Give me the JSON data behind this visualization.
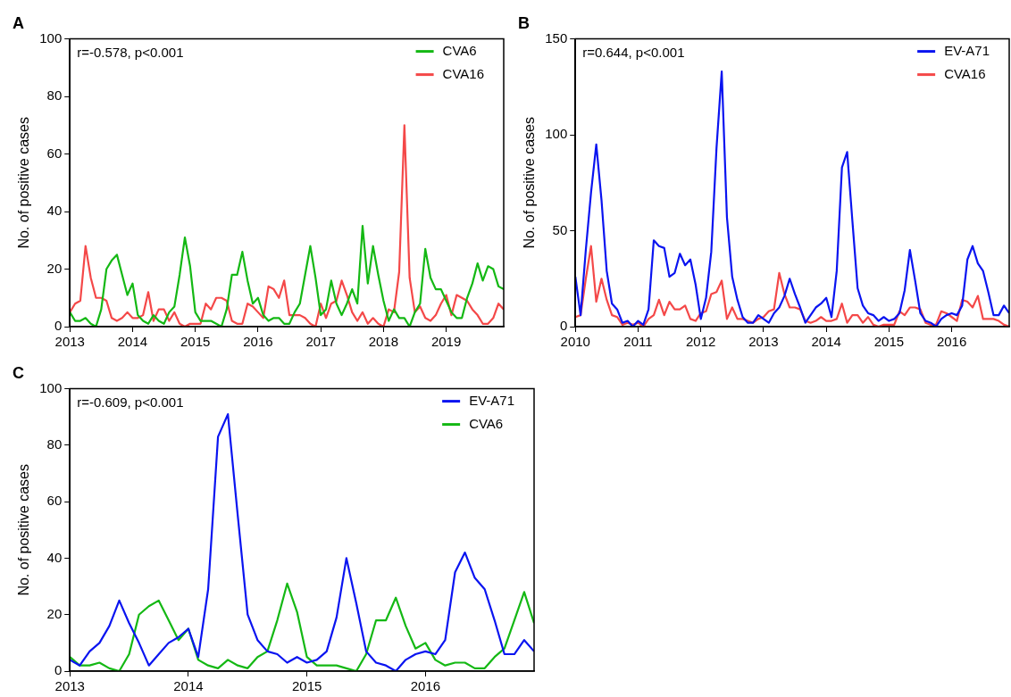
{
  "chart_data": [
    {
      "type": "line",
      "title": "A",
      "ylabel": "No. of positive cases",
      "annotations": [
        "r=-0.578, p<0.001"
      ],
      "legend": "top right",
      "x": [
        "2013-01",
        "2013-02",
        "2013-03",
        "2013-04",
        "2013-05",
        "2013-06",
        "2013-07",
        "2013-08",
        "2013-09",
        "2013-10",
        "2013-11",
        "2013-12",
        "2014-01",
        "2014-02",
        "2014-03",
        "2014-04",
        "2014-05",
        "2014-06",
        "2014-07",
        "2014-08",
        "2014-09",
        "2014-10",
        "2014-11",
        "2014-12",
        "2015-01",
        "2015-02",
        "2015-03",
        "2015-04",
        "2015-05",
        "2015-06",
        "2015-07",
        "2015-08",
        "2015-09",
        "2015-10",
        "2015-11",
        "2015-12",
        "2016-01",
        "2016-02",
        "2016-03",
        "2016-04",
        "2016-05",
        "2016-06",
        "2016-07",
        "2016-08",
        "2016-09",
        "2016-10",
        "2016-11",
        "2016-12",
        "2017-01",
        "2017-02",
        "2017-03",
        "2017-04",
        "2017-05",
        "2017-06",
        "2017-07",
        "2017-08",
        "2017-09",
        "2017-10",
        "2017-11",
        "2017-12",
        "2018-01",
        "2018-02",
        "2018-03",
        "2018-04",
        "2018-05",
        "2018-06",
        "2018-07",
        "2018-08",
        "2018-09",
        "2018-10",
        "2018-11",
        "2018-12",
        "2019-01",
        "2019-02",
        "2019-03",
        "2019-04",
        "2019-05",
        "2019-06",
        "2019-07",
        "2019-08",
        "2019-09",
        "2019-10",
        "2019-11",
        "2019-12"
      ],
      "xlim": [
        "2013-01",
        "2019-12"
      ],
      "xticks": [
        "2013",
        "2014",
        "2015",
        "2016",
        "2017",
        "2018",
        "2019"
      ],
      "ylim": [
        0,
        100
      ],
      "yticks": [
        0,
        20,
        40,
        60,
        80,
        100
      ],
      "series": [
        {
          "name": "CVA6",
          "color": "#14b814",
          "values": [
            5,
            2,
            2,
            3,
            1,
            0,
            6,
            20,
            23,
            25,
            18,
            11,
            15,
            4,
            2,
            1,
            4,
            2,
            1,
            5,
            7,
            18,
            31,
            21,
            5,
            2,
            2,
            2,
            1,
            0,
            6,
            18,
            18,
            26,
            16,
            8,
            10,
            4,
            2,
            3,
            3,
            1,
            1,
            5,
            8,
            18,
            28,
            17,
            4,
            6,
            16,
            8,
            4,
            8,
            13,
            8,
            35,
            15,
            28,
            18,
            9,
            2,
            6,
            3,
            3,
            0,
            5,
            8,
            27,
            17,
            13,
            13,
            9,
            5,
            3,
            3,
            10,
            15,
            22,
            16,
            21,
            20,
            14,
            13
          ]
        },
        {
          "name": "CVA16",
          "color": "#f44848",
          "values": [
            5,
            8,
            9,
            28,
            17,
            10,
            10,
            9,
            3,
            2,
            3,
            5,
            3,
            3,
            4,
            12,
            2,
            6,
            6,
            2,
            5,
            1,
            0,
            1,
            1,
            1,
            8,
            6,
            10,
            10,
            9,
            2,
            1,
            1,
            8,
            7,
            5,
            3,
            14,
            13,
            10,
            16,
            4,
            4,
            4,
            3,
            1,
            0,
            8,
            3,
            8,
            9,
            16,
            11,
            5,
            2,
            5,
            1,
            3,
            1,
            0,
            6,
            5,
            19,
            70,
            17,
            5,
            7,
            3,
            2,
            4,
            8,
            11,
            4,
            11,
            10,
            9,
            6,
            4,
            1,
            1,
            3,
            8,
            6
          ]
        }
      ]
    },
    {
      "type": "line",
      "title": "B",
      "ylabel": "No. of positive cases",
      "annotations": [
        "r=0.644, p<0.001"
      ],
      "legend": "top right",
      "x": [
        "2010-01",
        "2010-02",
        "2010-03",
        "2010-04",
        "2010-05",
        "2010-06",
        "2010-07",
        "2010-08",
        "2010-09",
        "2010-10",
        "2010-11",
        "2010-12",
        "2011-01",
        "2011-02",
        "2011-03",
        "2011-04",
        "2011-05",
        "2011-06",
        "2011-07",
        "2011-08",
        "2011-09",
        "2011-10",
        "2011-11",
        "2011-12",
        "2012-01",
        "2012-02",
        "2012-03",
        "2012-04",
        "2012-05",
        "2012-06",
        "2012-07",
        "2012-08",
        "2012-09",
        "2012-10",
        "2012-11",
        "2012-12",
        "2013-01",
        "2013-02",
        "2013-03",
        "2013-04",
        "2013-05",
        "2013-06",
        "2013-07",
        "2013-08",
        "2013-09",
        "2013-10",
        "2013-11",
        "2013-12",
        "2014-01",
        "2014-02",
        "2014-03",
        "2014-04",
        "2014-05",
        "2014-06",
        "2014-07",
        "2014-08",
        "2014-09",
        "2014-10",
        "2014-11",
        "2014-12",
        "2015-01",
        "2015-02",
        "2015-03",
        "2015-04",
        "2015-05",
        "2015-06",
        "2015-07",
        "2015-08",
        "2015-09",
        "2015-10",
        "2015-11",
        "2015-12",
        "2016-01",
        "2016-02",
        "2016-03",
        "2016-04",
        "2016-05",
        "2016-06",
        "2016-07",
        "2016-08",
        "2016-09",
        "2016-10",
        "2016-11",
        "2016-12"
      ],
      "xlim": [
        "2010-01",
        "2016-12"
      ],
      "xticks": [
        "2010",
        "2011",
        "2012",
        "2013",
        "2014",
        "2015",
        "2016"
      ],
      "ylim": [
        0,
        150
      ],
      "yticks": [
        0,
        50,
        100,
        150
      ],
      "series": [
        {
          "name": "EV-A71",
          "color": "#0a14f0",
          "values": [
            26,
            6,
            40,
            70,
            95,
            66,
            29,
            12,
            9,
            2,
            3,
            0,
            3,
            1,
            9,
            45,
            42,
            41,
            26,
            28,
            38,
            32,
            35,
            22,
            4,
            15,
            39,
            93,
            133,
            57,
            26,
            14,
            5,
            2,
            2,
            6,
            4,
            2,
            7,
            10,
            16,
            25,
            17,
            10,
            2,
            6,
            10,
            12,
            15,
            5,
            29,
            83,
            91,
            55,
            20,
            11,
            7,
            6,
            3,
            5,
            3,
            4,
            7,
            19,
            40,
            24,
            7,
            3,
            2,
            0,
            4,
            6,
            7,
            6,
            11,
            35,
            42,
            33,
            29,
            18,
            6,
            6,
            11,
            7
          ]
        },
        {
          "name": "CVA16",
          "color": "#f44848",
          "values": [
            5,
            6,
            25,
            42,
            13,
            25,
            14,
            6,
            5,
            1,
            2,
            1,
            2,
            0,
            4,
            6,
            14,
            6,
            13,
            9,
            9,
            11,
            4,
            3,
            7,
            8,
            17,
            18,
            24,
            4,
            10,
            4,
            4,
            3,
            2,
            4,
            5,
            8,
            9,
            28,
            17,
            10,
            10,
            9,
            3,
            2,
            3,
            5,
            3,
            3,
            4,
            12,
            2,
            6,
            6,
            2,
            5,
            1,
            0,
            1,
            1,
            1,
            8,
            6,
            10,
            10,
            9,
            2,
            1,
            1,
            8,
            7,
            5,
            3,
            14,
            13,
            10,
            16,
            4,
            4,
            4,
            3,
            1,
            0
          ]
        }
      ]
    },
    {
      "type": "line",
      "title": "C",
      "ylabel": "No. of positive cases",
      "annotations": [
        "r=-0.609, p<0.001"
      ],
      "legend": "top right",
      "x": [
        "2013-01",
        "2013-02",
        "2013-03",
        "2013-04",
        "2013-05",
        "2013-06",
        "2013-07",
        "2013-08",
        "2013-09",
        "2013-10",
        "2013-11",
        "2013-12",
        "2014-01",
        "2014-02",
        "2014-03",
        "2014-04",
        "2014-05",
        "2014-06",
        "2014-07",
        "2014-08",
        "2014-09",
        "2014-10",
        "2014-11",
        "2014-12",
        "2015-01",
        "2015-02",
        "2015-03",
        "2015-04",
        "2015-05",
        "2015-06",
        "2015-07",
        "2015-08",
        "2015-09",
        "2015-10",
        "2015-11",
        "2015-12",
        "2016-01",
        "2016-02",
        "2016-03",
        "2016-04",
        "2016-05",
        "2016-06",
        "2016-07",
        "2016-08",
        "2016-09",
        "2016-10",
        "2016-11",
        "2016-12"
      ],
      "xlim": [
        "2013-01",
        "2016-12"
      ],
      "xticks": [
        "2013",
        "2014",
        "2015",
        "2016"
      ],
      "ylim": [
        0,
        100
      ],
      "yticks": [
        0,
        20,
        40,
        60,
        80,
        100
      ],
      "series": [
        {
          "name": "EV-A71",
          "color": "#0a14f0",
          "values": [
            4,
            2,
            7,
            10,
            16,
            25,
            17,
            10,
            2,
            6,
            10,
            12,
            15,
            5,
            29,
            83,
            91,
            55,
            20,
            11,
            7,
            6,
            3,
            5,
            3,
            4,
            7,
            19,
            40,
            24,
            7,
            3,
            2,
            0,
            4,
            6,
            7,
            6,
            11,
            35,
            42,
            33,
            29,
            18,
            6,
            6,
            11,
            7
          ]
        },
        {
          "name": "CVA6",
          "color": "#14b814",
          "values": [
            5,
            2,
            2,
            3,
            1,
            0,
            6,
            20,
            23,
            25,
            18,
            11,
            15,
            4,
            2,
            1,
            4,
            2,
            1,
            5,
            7,
            18,
            31,
            21,
            5,
            2,
            2,
            2,
            1,
            0,
            6,
            18,
            18,
            26,
            16,
            8,
            10,
            4,
            2,
            3,
            3,
            1,
            1,
            5,
            8,
            18,
            28,
            17
          ]
        }
      ]
    }
  ]
}
